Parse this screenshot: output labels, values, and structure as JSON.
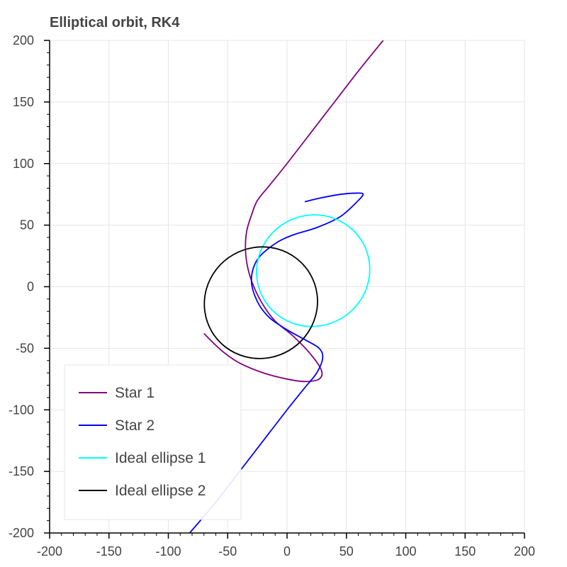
{
  "chart_data": {
    "type": "line",
    "title": "Elliptical orbit, RK4",
    "xlabel": "",
    "ylabel": "",
    "xlim": [
      -200,
      200
    ],
    "ylim": [
      -200,
      200
    ],
    "x_ticks": [
      -200,
      -150,
      -100,
      -50,
      0,
      50,
      100,
      150,
      200
    ],
    "y_ticks": [
      -200,
      -150,
      -100,
      -50,
      0,
      50,
      100,
      150,
      200
    ],
    "grid": true,
    "legend_position": "bottom-left",
    "series": [
      {
        "name": "Star 1",
        "color": "#800080",
        "x": [
          81,
          60,
          40,
          20,
          0,
          -15,
          -25,
          -30,
          -34,
          -35,
          -33,
          -28,
          -20,
          -10,
          5,
          20,
          29,
          27,
          15,
          0,
          -20,
          -40,
          -55,
          -70
        ],
        "y": [
          200,
          175,
          150,
          125,
          100,
          82,
          70,
          58,
          45,
          30,
          15,
          0,
          -15,
          -28,
          -40,
          -55,
          -68,
          -75,
          -77,
          -75,
          -70,
          -62,
          -52,
          -38
        ]
      },
      {
        "name": "Star 2",
        "color": "#0000ff",
        "x": [
          -82,
          -60,
          -40,
          -20,
          0,
          15,
          25,
          30,
          27,
          15,
          0,
          -15,
          -25,
          -30,
          -25,
          -10,
          5,
          25,
          45,
          60,
          64,
          60,
          45,
          28,
          15
        ],
        "y": [
          -200,
          -175,
          -150,
          -125,
          -100,
          -82,
          -70,
          -58,
          -50,
          -43,
          -35,
          -25,
          -12,
          5,
          22,
          35,
          42,
          48,
          57,
          70,
          75,
          76,
          75,
          72,
          69
        ]
      },
      {
        "name": "Ideal ellipse 1",
        "color": "#00ffff",
        "shape": "ellipse",
        "center": [
          22,
          13
        ],
        "radius_x": 48,
        "radius_y": 45,
        "tilt_deg": -30
      },
      {
        "name": "Ideal ellipse 2",
        "color": "#000000",
        "shape": "ellipse",
        "center": [
          -22,
          -13
        ],
        "radius_x": 48,
        "radius_y": 45,
        "tilt_deg": -30
      }
    ]
  }
}
